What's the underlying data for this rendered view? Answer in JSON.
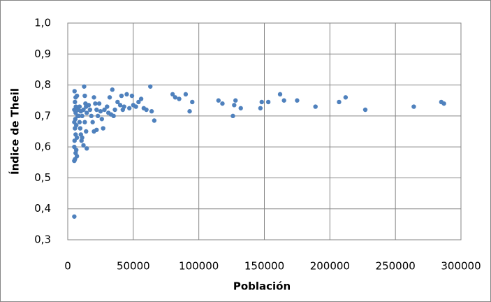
{
  "chart_data": {
    "type": "scatter",
    "xlabel": "Población",
    "ylabel": "Índice de Theil",
    "color": "#4f81bd",
    "grid": true,
    "xlim": [
      0,
      300000
    ],
    "xticks": [
      0,
      50000,
      100000,
      150000,
      200000,
      250000,
      300000
    ],
    "ylim": [
      0.3,
      1.0
    ],
    "yticks": [
      {
        "value": 0.3,
        "label": "0,3"
      },
      {
        "value": 0.4,
        "label": "0,4"
      },
      {
        "value": 0.5,
        "label": "0,5"
      },
      {
        "value": 0.6,
        "label": "0,6"
      },
      {
        "value": 0.7,
        "label": "0,7"
      },
      {
        "value": 0.8,
        "label": "0,8"
      },
      {
        "value": 0.9,
        "label": "0,9"
      },
      {
        "value": 1.0,
        "label": "1,0"
      }
    ],
    "x": [
      5000,
      5000,
      5500,
      6000,
      5000,
      6500,
      7000,
      5200,
      6000,
      7000,
      5500,
      6500,
      5000,
      5800,
      7500,
      6000,
      5000,
      6200,
      5500,
      6000,
      5200,
      7000,
      8000,
      8500,
      9000,
      9500,
      10000,
      10500,
      11000,
      12000,
      12500,
      13000,
      13500,
      14000,
      14500,
      13000,
      14000,
      14500,
      12000,
      11000,
      9000,
      10000,
      16000,
      17000,
      18000,
      19000,
      20000,
      21000,
      22000,
      23000,
      20000,
      22000,
      24000,
      25000,
      26000,
      27000,
      28000,
      30000,
      31000,
      32000,
      33000,
      34000,
      35000,
      36000,
      38000,
      40000,
      41000,
      42000,
      43000,
      45000,
      47000,
      49000,
      50000,
      52000,
      54000,
      56000,
      58000,
      60000,
      63000,
      64000,
      66000,
      80000,
      82000,
      85000,
      90000,
      93000,
      95000,
      115000,
      118000,
      126000,
      127000,
      128000,
      132000,
      147000,
      148000,
      153000,
      162000,
      165000,
      175000,
      189000,
      207000,
      212000,
      227000,
      264000,
      285000,
      287000
    ],
    "values": [
      0.375,
      0.555,
      0.56,
      0.58,
      0.6,
      0.59,
      0.57,
      0.62,
      0.64,
      0.63,
      0.66,
      0.67,
      0.68,
      0.69,
      0.7,
      0.71,
      0.72,
      0.73,
      0.745,
      0.76,
      0.78,
      0.765,
      0.72,
      0.7,
      0.68,
      0.66,
      0.64,
      0.62,
      0.7,
      0.72,
      0.795,
      0.765,
      0.74,
      0.73,
      0.71,
      0.68,
      0.65,
      0.595,
      0.605,
      0.63,
      0.73,
      0.715,
      0.735,
      0.72,
      0.7,
      0.68,
      0.76,
      0.74,
      0.72,
      0.7,
      0.65,
      0.655,
      0.74,
      0.715,
      0.69,
      0.66,
      0.72,
      0.73,
      0.71,
      0.76,
      0.705,
      0.785,
      0.7,
      0.72,
      0.745,
      0.735,
      0.765,
      0.72,
      0.73,
      0.77,
      0.725,
      0.765,
      0.735,
      0.73,
      0.745,
      0.755,
      0.725,
      0.72,
      0.795,
      0.715,
      0.685,
      0.77,
      0.76,
      0.755,
      0.77,
      0.715,
      0.745,
      0.75,
      0.74,
      0.7,
      0.735,
      0.75,
      0.725,
      0.725,
      0.745,
      0.745,
      0.77,
      0.75,
      0.75,
      0.73,
      0.745,
      0.76,
      0.72,
      0.73,
      0.745,
      0.74
    ]
  }
}
